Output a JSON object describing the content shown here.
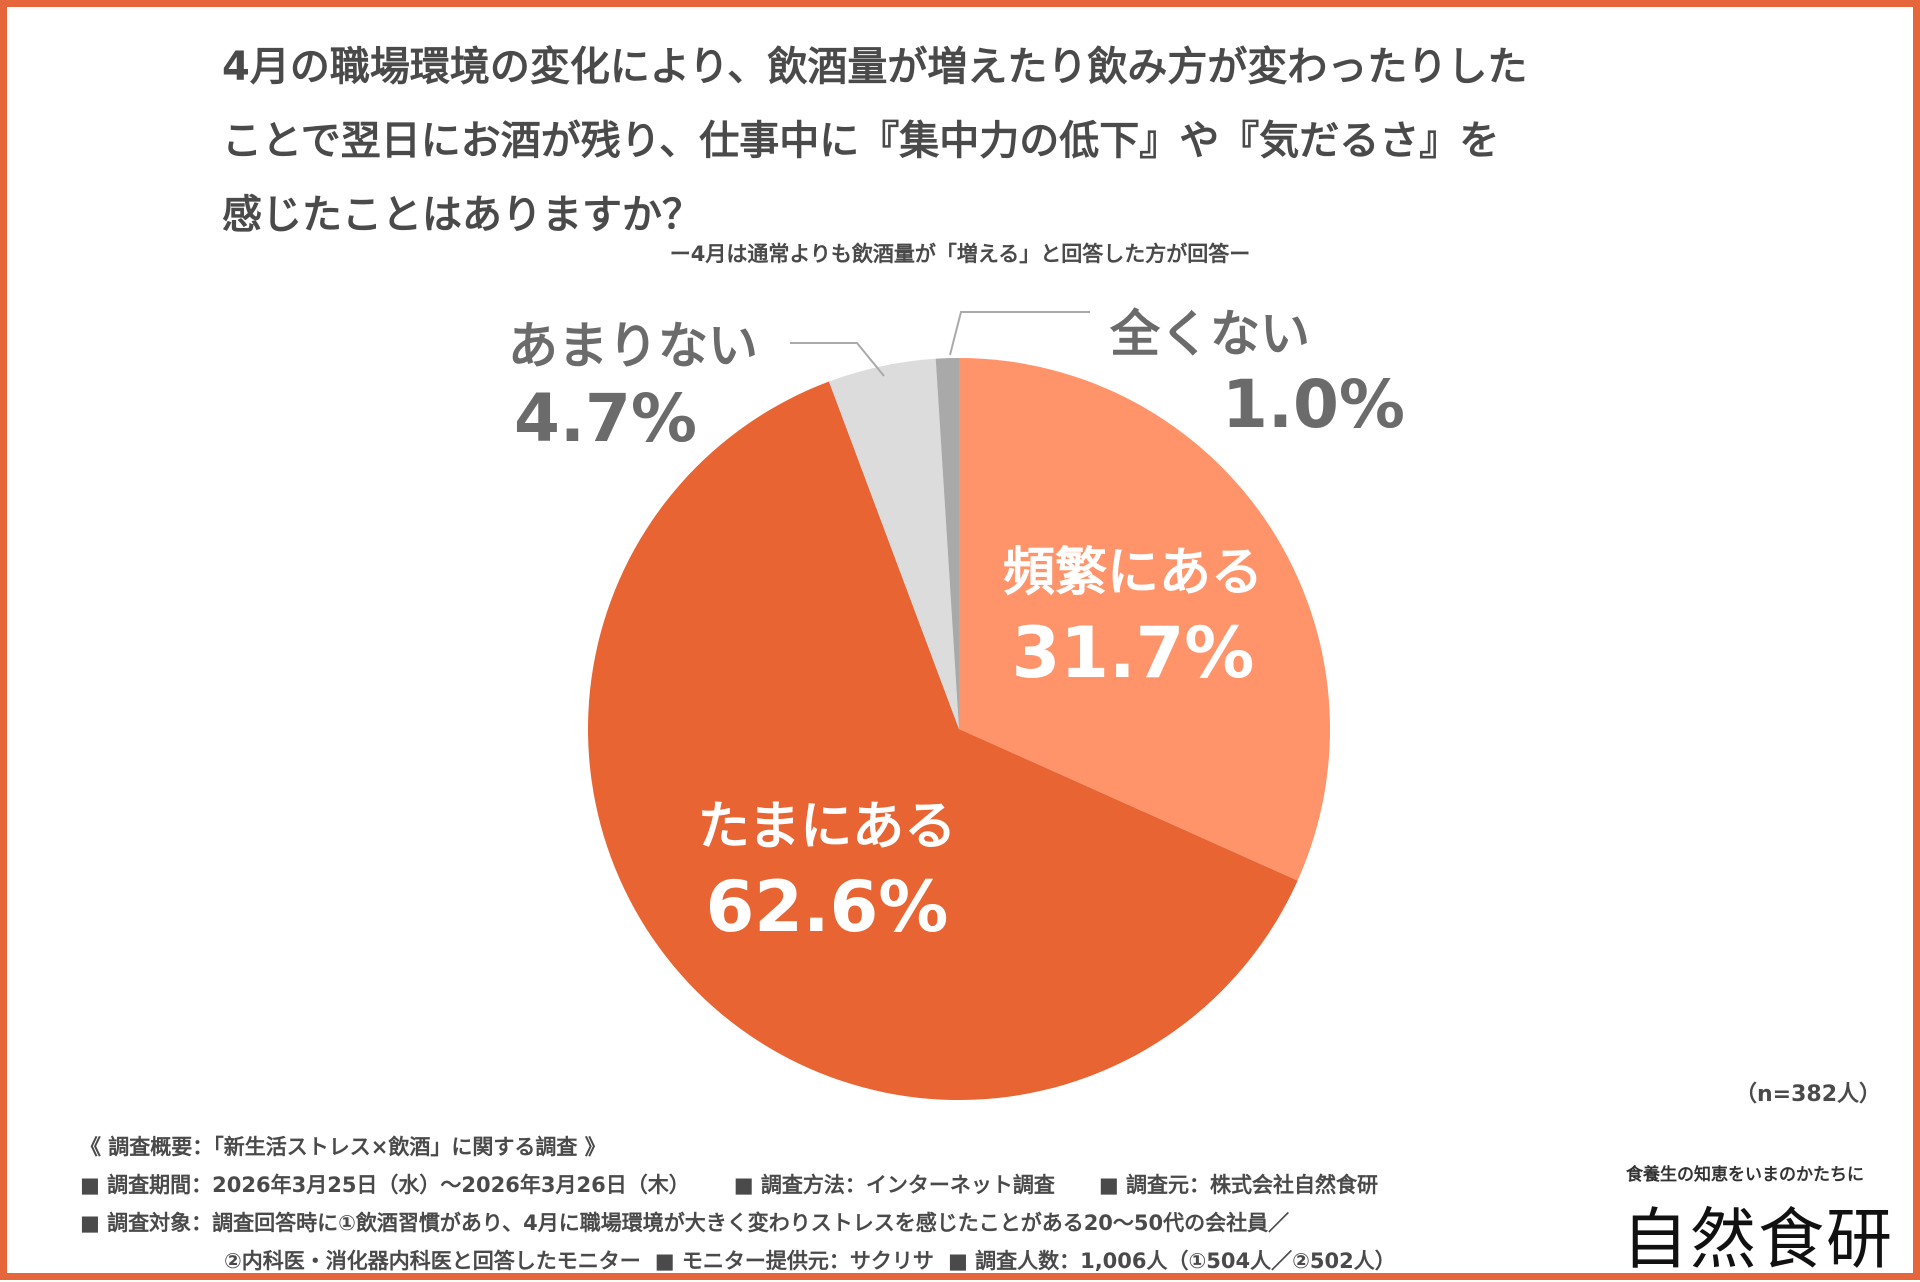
{
  "title_lines": [
    "4月の職場環境の変化により、飲酒量が増えたり飲み方が変わったりした",
    "ことで翌日にお酒が残り、仕事中に『集中力の低下』や『気だるさ』を",
    "感じたことはありますか？"
  ],
  "subtitle": "ー4月は通常よりも飲酒量が「増える」と回答した方が回答ー",
  "chart_data": {
    "type": "pie",
    "title": "4月の職場環境の変化により、飲酒量が増えたり飲み方が変わったりしたことで翌日にお酒が残り、仕事中に『集中力の低下』や『気だるさ』を感じたことはありますか？",
    "categories": [
      "頻繁にある",
      "たまにある",
      "あまりない",
      "全くない"
    ],
    "values": [
      31.7,
      62.6,
      4.7,
      1.0
    ],
    "labels": [
      "31.7%",
      "62.6%",
      "4.7%",
      "1.0%"
    ],
    "colors": [
      "#FF946B",
      "#E86433",
      "#DCDCDC",
      "#A9A9A9"
    ],
    "start": "12 o'clock, clockwise"
  },
  "sample": "（n=382人）",
  "footer": {
    "heading": "《 調査概要：「新生活ストレス×飲酒」に関する調査 》",
    "period": "■ 調査期間：2026年3月25日（水）～2026年3月26日（木）",
    "method": "■ 調査方法：インターネット調査",
    "source": "■ 調査元：株式会社自然食研",
    "target": "■ 調査対象：調査回答時に①飲酒習慣があり、4月に職場環境が大きく変わりストレスを感じたことがある20～50代の会社員／",
    "target2": "②内科医・消化器内科医と回答したモニター",
    "provider": "■ モニター提供元：サクリサ",
    "count": "■ 調査人数：1,006人（①504人／②502人）"
  },
  "logo": {
    "tagline": "食養生の知恵をいまのかたちに",
    "name": "自然食研"
  }
}
